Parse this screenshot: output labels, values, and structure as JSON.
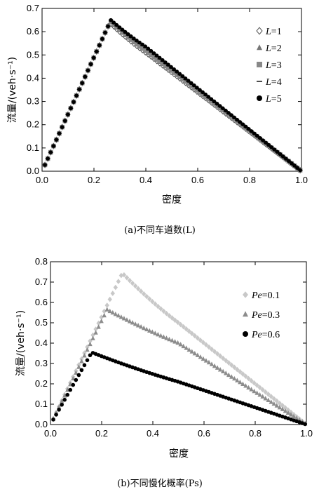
{
  "chart_data": [
    {
      "type": "scatter",
      "caption": "(a)不同车道数(L)",
      "xlabel": "密度",
      "ylabel": "流量/(veh·s⁻¹)",
      "xlim": [
        0,
        1
      ],
      "ylim": [
        0,
        0.7
      ],
      "xticks": [
        "0.0",
        "0.2",
        "0.4",
        "0.6",
        "0.8",
        "1.0"
      ],
      "yticks": [
        "0.0",
        "0.1",
        "0.2",
        "0.3",
        "0.4",
        "0.5",
        "0.6",
        "0.7"
      ],
      "grid": false,
      "legend_position": "top-right",
      "series": [
        {
          "name": "L=1",
          "var": "L",
          "val": "=1",
          "marker": "diamond-open",
          "color": "#555555",
          "peak": [
            0.26,
            0.64
          ],
          "mid": [
            0.4,
            0.51
          ],
          "slope_up": 2.45
        },
        {
          "name": "L=2",
          "var": "L",
          "val": "=2",
          "marker": "triangle",
          "color": "#777777",
          "peak": [
            0.26,
            0.645
          ],
          "mid": [
            0.4,
            0.515
          ],
          "slope_up": 2.45
        },
        {
          "name": "L=3",
          "var": "L",
          "val": "=3",
          "marker": "square",
          "color": "#888888",
          "peak": [
            0.26,
            0.65
          ],
          "mid": [
            0.4,
            0.52
          ],
          "slope_up": 2.45
        },
        {
          "name": "L=4",
          "var": "L",
          "val": "=4",
          "marker": "dash",
          "color": "#222222",
          "peak": [
            0.26,
            0.652
          ],
          "mid": [
            0.4,
            0.53
          ],
          "slope_up": 2.45
        },
        {
          "name": "L=5",
          "var": "L",
          "val": "=5",
          "marker": "circle",
          "color": "#000000",
          "peak": [
            0.26,
            0.655
          ],
          "mid": [
            0.4,
            0.535
          ],
          "slope_up": 2.45
        }
      ]
    },
    {
      "type": "scatter",
      "caption": "(b)不同慢化概率(Ps)",
      "xlabel": "密度",
      "ylabel": "流量/(veh·s⁻¹)",
      "xlim": [
        0,
        1
      ],
      "ylim": [
        0,
        0.8
      ],
      "xticks": [
        "0.0",
        "0.2",
        "0.4",
        "0.6",
        "0.8",
        "1.0"
      ],
      "yticks": [
        "0.0",
        "0.1",
        "0.2",
        "0.3",
        "0.4",
        "0.5",
        "0.6",
        "0.7",
        "0.8"
      ],
      "grid": false,
      "legend_position": "top-right",
      "series": [
        {
          "name": "Pe=0.1",
          "var": "Pe",
          "val": "=0.1",
          "marker": "diamond",
          "color": "#c8c8c8",
          "peak": [
            0.28,
            0.745
          ],
          "mid": [
            0.5,
            0.5
          ],
          "slope_up": 2.65
        },
        {
          "name": "Pe=0.3",
          "var": "Pe",
          "val": "=0.3",
          "marker": "triangle",
          "color": "#8c8c8c",
          "peak": [
            0.22,
            0.565
          ],
          "mid": [
            0.5,
            0.4
          ],
          "slope_up": 2.55
        },
        {
          "name": "Pe=0.6",
          "var": "Pe",
          "val": "=0.6",
          "marker": "circle",
          "color": "#000000",
          "peak": [
            0.16,
            0.355
          ],
          "mid": [
            0.5,
            0.21
          ],
          "slope_up": 2.2
        }
      ]
    }
  ]
}
